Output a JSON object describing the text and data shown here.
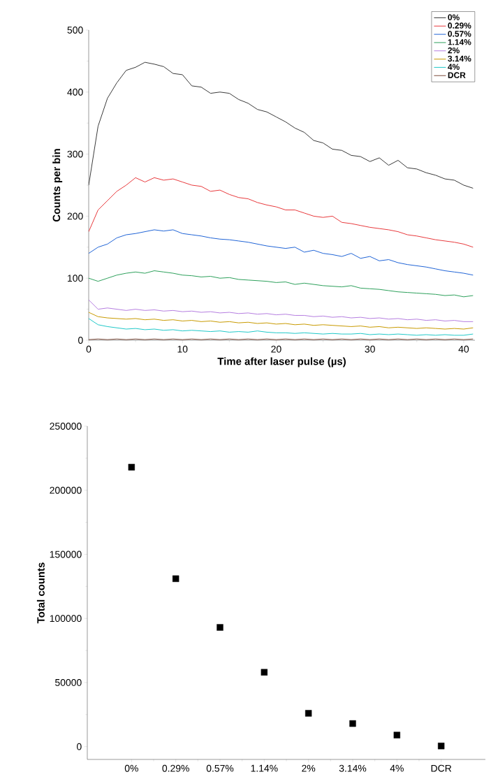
{
  "chart_data": [
    {
      "type": "line",
      "xlabel": "Time after laser pulse (µs)",
      "ylabel": "Counts per bin",
      "x": [
        0,
        1,
        2,
        3,
        4,
        5,
        6,
        7,
        8,
        9,
        10,
        11,
        12,
        13,
        14,
        15,
        16,
        17,
        18,
        19,
        20,
        21,
        22,
        23,
        24,
        25,
        26,
        27,
        28,
        29,
        30,
        31,
        32,
        33,
        34,
        35,
        36,
        37,
        38,
        39,
        40,
        41
      ],
      "series": [
        {
          "name": "0%",
          "color": "#3a3a3a",
          "values": [
            250,
            345,
            390,
            415,
            435,
            440,
            448,
            445,
            441,
            430,
            428,
            410,
            408,
            398,
            400,
            398,
            388,
            382,
            372,
            368,
            360,
            352,
            342,
            335,
            322,
            318,
            308,
            306,
            298,
            296,
            288,
            294,
            282,
            290,
            278,
            276,
            270,
            266,
            260,
            258,
            250,
            245
          ]
        },
        {
          "name": "0.29%",
          "color": "#e8393c",
          "values": [
            175,
            210,
            225,
            240,
            250,
            262,
            255,
            262,
            258,
            260,
            255,
            250,
            248,
            240,
            242,
            235,
            230,
            228,
            222,
            218,
            215,
            210,
            210,
            205,
            200,
            198,
            200,
            190,
            188,
            185,
            182,
            180,
            178,
            175,
            170,
            168,
            165,
            162,
            160,
            158,
            155,
            150
          ]
        },
        {
          "name": "0.57%",
          "color": "#1f63d6",
          "values": [
            140,
            150,
            155,
            165,
            170,
            172,
            175,
            178,
            176,
            178,
            172,
            170,
            168,
            165,
            163,
            162,
            160,
            158,
            155,
            152,
            150,
            148,
            150,
            142,
            145,
            140,
            138,
            135,
            140,
            132,
            135,
            128,
            130,
            125,
            122,
            120,
            118,
            115,
            112,
            110,
            108,
            105
          ]
        },
        {
          "name": "1.14%",
          "color": "#2ca05a",
          "values": [
            100,
            95,
            100,
            105,
            108,
            110,
            108,
            112,
            110,
            108,
            105,
            104,
            102,
            103,
            100,
            101,
            98,
            97,
            96,
            95,
            93,
            94,
            90,
            92,
            90,
            88,
            87,
            86,
            88,
            84,
            83,
            82,
            80,
            78,
            77,
            76,
            75,
            74,
            72,
            73,
            70,
            72
          ]
        },
        {
          "name": "2%",
          "color": "#b57de0",
          "values": [
            65,
            50,
            52,
            50,
            48,
            50,
            48,
            49,
            47,
            48,
            46,
            47,
            45,
            46,
            44,
            45,
            43,
            44,
            42,
            43,
            41,
            42,
            40,
            40,
            38,
            39,
            37,
            38,
            36,
            37,
            35,
            36,
            34,
            35,
            33,
            34,
            32,
            33,
            31,
            32,
            30,
            30
          ]
        },
        {
          "name": "3.14%",
          "color": "#c89a00",
          "values": [
            45,
            38,
            36,
            35,
            34,
            35,
            33,
            34,
            32,
            33,
            31,
            32,
            30,
            31,
            29,
            30,
            28,
            29,
            27,
            28,
            26,
            27,
            25,
            26,
            24,
            25,
            24,
            23,
            22,
            23,
            21,
            22,
            20,
            21,
            20,
            19,
            20,
            19,
            18,
            19,
            18,
            20
          ]
        },
        {
          "name": "4%",
          "color": "#1fc8c8",
          "values": [
            35,
            25,
            22,
            20,
            18,
            19,
            17,
            18,
            16,
            17,
            15,
            16,
            15,
            14,
            15,
            13,
            14,
            13,
            15,
            13,
            12,
            12,
            11,
            12,
            11,
            10,
            11,
            10,
            10,
            11,
            9,
            10,
            9,
            10,
            9,
            8,
            9,
            8,
            9,
            8,
            8,
            10
          ]
        },
        {
          "name": "DCR",
          "color": "#7a4a3a",
          "values": [
            1,
            2,
            1,
            2,
            1,
            2,
            1,
            2,
            1,
            2,
            1,
            2,
            1,
            2,
            1,
            2,
            1,
            2,
            1,
            2,
            1,
            2,
            1,
            2,
            1,
            2,
            1,
            2,
            1,
            2,
            1,
            2,
            1,
            2,
            1,
            2,
            1,
            2,
            1,
            2,
            1,
            2
          ]
        }
      ],
      "xlim": [
        0,
        41.2
      ],
      "ylim": [
        0,
        500
      ],
      "xticks": [
        0,
        10,
        20,
        30,
        40
      ],
      "yticks": [
        0,
        100,
        200,
        300,
        400,
        500
      ],
      "legend": "top right"
    },
    {
      "type": "scatter",
      "ylabel": "Total counts",
      "marker": "square",
      "categories": [
        "0%",
        "0.29%",
        "0.57%",
        "1.14%",
        "2%",
        "3.14%",
        "4%",
        "DCR"
      ],
      "series": [
        {
          "color": "#000000",
          "values": [
            218000,
            131000,
            93000,
            58000,
            26000,
            18000,
            9000,
            500
          ]
        }
      ],
      "ylim": [
        -10000,
        250000
      ],
      "yticks": [
        0,
        50000,
        100000,
        150000,
        200000,
        250000
      ]
    }
  ]
}
